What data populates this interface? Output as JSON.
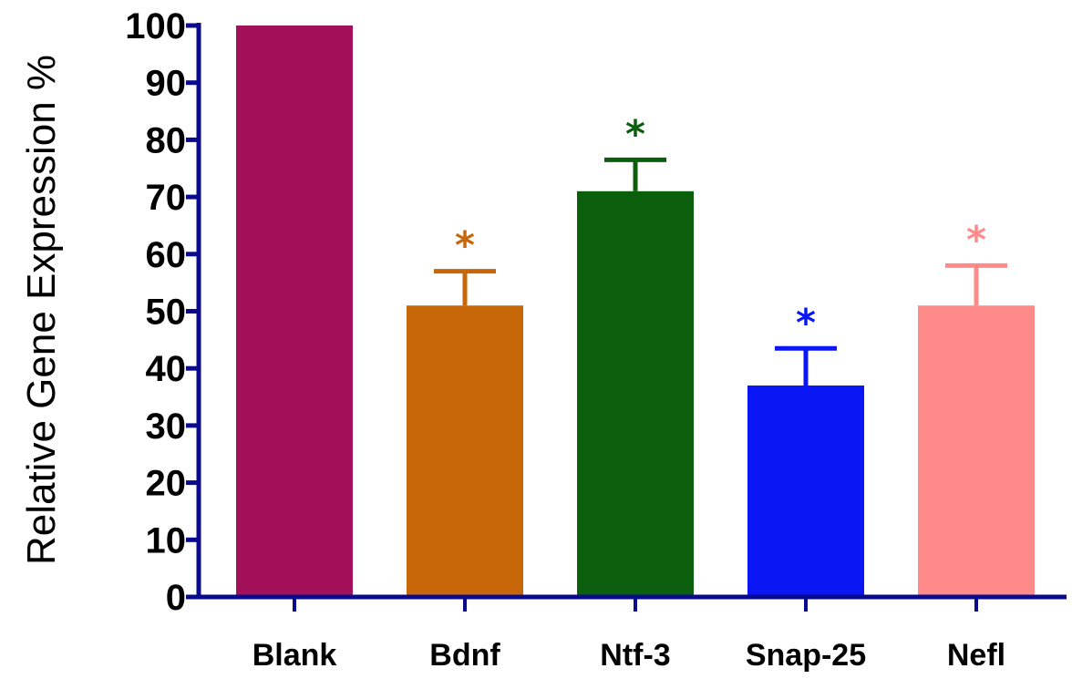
{
  "chart_data": {
    "type": "bar",
    "categories": [
      "Blank",
      "Bdnf",
      "Ntf-3",
      "Snap-25",
      "Nefl"
    ],
    "values": [
      100,
      51,
      71,
      37,
      51
    ],
    "error_upper": [
      100,
      57,
      76.5,
      43.5,
      58
    ],
    "significance_markers": [
      "",
      "*",
      "*",
      "*",
      "*"
    ],
    "colors": [
      "#A3105A",
      "#C8660A",
      "#0B5E0B",
      "#0A16F4",
      "#FF8A8A"
    ],
    "ylabel": "Relative Gene Expression %",
    "ylim": [
      0,
      100
    ],
    "yticks": [
      0,
      10,
      20,
      30,
      40,
      50,
      60,
      70,
      80,
      90,
      100
    ],
    "axis_color": "#0A0A8C",
    "grid": false
  }
}
